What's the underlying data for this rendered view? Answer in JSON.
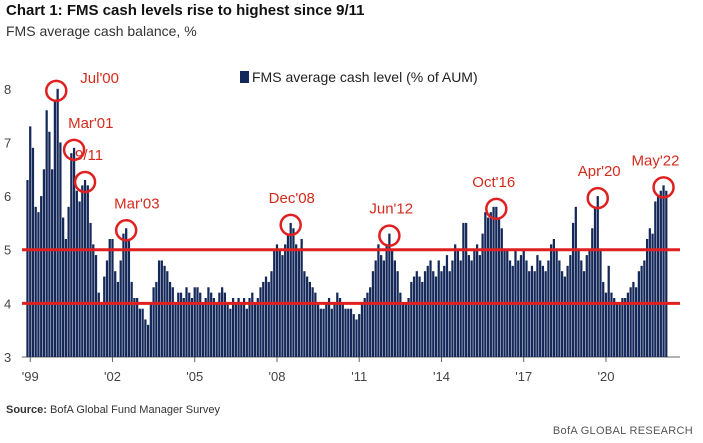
{
  "title": "Chart 1: FMS cash levels rise to highest since 9/11",
  "subtitle": "FMS average cash balance, %",
  "source_label": "Source:",
  "source_text": "BofA Global Fund Manager Survey",
  "brand": "BofA GLOBAL RESEARCH",
  "colors": {
    "bar": "#15285a",
    "highlight": "#e02020",
    "annotation": "#d52b1e"
  },
  "chart_data": {
    "type": "bar",
    "title": "Chart 1: FMS cash levels rise to highest since 9/11",
    "ylabel": "FMS average cash balance, %",
    "xlabel": "",
    "ylim": [
      3,
      8.5
    ],
    "xlim": [
      1998.7,
      2022.7
    ],
    "yticks": [
      3,
      4,
      5,
      6,
      7,
      8
    ],
    "xticks": [
      {
        "x": 1999,
        "label": "'99"
      },
      {
        "x": 2002,
        "label": "'02"
      },
      {
        "x": 2005,
        "label": "'05"
      },
      {
        "x": 2008,
        "label": "'08"
      },
      {
        "x": 2011,
        "label": "'11"
      },
      {
        "x": 2014,
        "label": "'14"
      },
      {
        "x": 2017,
        "label": "'17"
      },
      {
        "x": 2020,
        "label": "'20"
      }
    ],
    "legend": "FMS average cash level (% of AUM)",
    "reference_lines": [
      5.0,
      4.0
    ],
    "series": [
      {
        "name": "FMS average cash level (% of AUM)",
        "points": [
          [
            1998.9,
            6.3
          ],
          [
            1999.0,
            7.3
          ],
          [
            1999.1,
            6.9
          ],
          [
            1999.2,
            5.8
          ],
          [
            1999.3,
            5.7
          ],
          [
            1999.4,
            6.0
          ],
          [
            1999.5,
            6.5
          ],
          [
            1999.6,
            7.6
          ],
          [
            1999.7,
            7.2
          ],
          [
            1999.8,
            6.5
          ],
          [
            1999.9,
            7.8
          ],
          [
            2000.0,
            8.0
          ],
          [
            2000.1,
            7.0
          ],
          [
            2000.2,
            5.6
          ],
          [
            2000.3,
            5.2
          ],
          [
            2000.4,
            5.8
          ],
          [
            2000.5,
            6.8
          ],
          [
            2000.6,
            6.9
          ],
          [
            2000.7,
            6.1
          ],
          [
            2000.8,
            5.9
          ],
          [
            2000.9,
            6.2
          ],
          [
            2001.0,
            6.3
          ],
          [
            2001.1,
            6.2
          ],
          [
            2001.2,
            5.5
          ],
          [
            2001.3,
            5.1
          ],
          [
            2001.4,
            4.9
          ],
          [
            2001.5,
            4.2
          ],
          [
            2001.6,
            4.0
          ],
          [
            2001.7,
            4.5
          ],
          [
            2001.8,
            4.8
          ],
          [
            2001.9,
            5.2
          ],
          [
            2002.0,
            5.2
          ],
          [
            2002.1,
            4.6
          ],
          [
            2002.2,
            4.4
          ],
          [
            2002.3,
            4.8
          ],
          [
            2002.4,
            5.3
          ],
          [
            2002.5,
            5.4
          ],
          [
            2002.6,
            5.2
          ],
          [
            2002.7,
            4.4
          ],
          [
            2002.8,
            4.1
          ],
          [
            2002.9,
            4.1
          ],
          [
            2003.0,
            3.9
          ],
          [
            2003.1,
            3.9
          ],
          [
            2003.2,
            3.7
          ],
          [
            2003.3,
            3.6
          ],
          [
            2003.4,
            4.0
          ],
          [
            2003.5,
            4.3
          ],
          [
            2003.6,
            4.4
          ],
          [
            2003.7,
            4.8
          ],
          [
            2003.8,
            4.8
          ],
          [
            2003.9,
            4.7
          ],
          [
            2004.0,
            4.6
          ],
          [
            2004.1,
            4.4
          ],
          [
            2004.2,
            4.3
          ],
          [
            2004.3,
            4.0
          ],
          [
            2004.4,
            4.2
          ],
          [
            2004.5,
            4.2
          ],
          [
            2004.6,
            4.1
          ],
          [
            2004.7,
            4.3
          ],
          [
            2004.8,
            4.2
          ],
          [
            2004.9,
            4.1
          ],
          [
            2005.0,
            4.3
          ],
          [
            2005.1,
            4.3
          ],
          [
            2005.2,
            4.2
          ],
          [
            2005.3,
            4.0
          ],
          [
            2005.4,
            4.1
          ],
          [
            2005.5,
            4.3
          ],
          [
            2005.6,
            4.2
          ],
          [
            2005.7,
            4.1
          ],
          [
            2005.8,
            4.0
          ],
          [
            2005.9,
            4.2
          ],
          [
            2006.0,
            4.3
          ],
          [
            2006.1,
            4.2
          ],
          [
            2006.2,
            4.0
          ],
          [
            2006.3,
            3.9
          ],
          [
            2006.4,
            4.1
          ],
          [
            2006.5,
            4.0
          ],
          [
            2006.6,
            4.1
          ],
          [
            2006.7,
            4.0
          ],
          [
            2006.8,
            4.1
          ],
          [
            2006.9,
            3.9
          ],
          [
            2007.0,
            4.1
          ],
          [
            2007.1,
            4.2
          ],
          [
            2007.2,
            4.0
          ],
          [
            2007.3,
            4.1
          ],
          [
            2007.4,
            4.3
          ],
          [
            2007.5,
            4.4
          ],
          [
            2007.6,
            4.5
          ],
          [
            2007.7,
            4.4
          ],
          [
            2007.8,
            4.6
          ],
          [
            2007.9,
            5.0
          ],
          [
            2008.0,
            5.1
          ],
          [
            2008.1,
            5.0
          ],
          [
            2008.2,
            4.9
          ],
          [
            2008.3,
            5.1
          ],
          [
            2008.4,
            5.3
          ],
          [
            2008.5,
            5.5
          ],
          [
            2008.6,
            5.4
          ],
          [
            2008.7,
            5.1
          ],
          [
            2008.8,
            5.0
          ],
          [
            2008.9,
            5.2
          ],
          [
            2009.0,
            4.6
          ],
          [
            2009.1,
            4.5
          ],
          [
            2009.2,
            4.4
          ],
          [
            2009.3,
            4.3
          ],
          [
            2009.4,
            4.2
          ],
          [
            2009.5,
            4.0
          ],
          [
            2009.6,
            3.9
          ],
          [
            2009.7,
            3.9
          ],
          [
            2009.8,
            4.0
          ],
          [
            2009.9,
            4.1
          ],
          [
            2010.0,
            3.9
          ],
          [
            2010.1,
            4.0
          ],
          [
            2010.2,
            4.2
          ],
          [
            2010.3,
            4.1
          ],
          [
            2010.4,
            4.0
          ],
          [
            2010.5,
            3.9
          ],
          [
            2010.6,
            3.9
          ],
          [
            2010.7,
            3.9
          ],
          [
            2010.8,
            3.8
          ],
          [
            2010.9,
            3.7
          ],
          [
            2011.0,
            3.8
          ],
          [
            2011.1,
            4.0
          ],
          [
            2011.2,
            4.1
          ],
          [
            2011.3,
            4.2
          ],
          [
            2011.4,
            4.3
          ],
          [
            2011.5,
            4.6
          ],
          [
            2011.6,
            4.8
          ],
          [
            2011.7,
            5.1
          ],
          [
            2011.8,
            4.9
          ],
          [
            2011.9,
            4.8
          ],
          [
            2012.0,
            5.1
          ],
          [
            2012.1,
            5.3
          ],
          [
            2012.2,
            5.0
          ],
          [
            2012.3,
            4.8
          ],
          [
            2012.4,
            4.6
          ],
          [
            2012.5,
            4.2
          ],
          [
            2012.6,
            4.0
          ],
          [
            2012.7,
            4.0
          ],
          [
            2012.8,
            4.1
          ],
          [
            2012.9,
            4.4
          ],
          [
            2013.0,
            4.5
          ],
          [
            2013.1,
            4.6
          ],
          [
            2013.2,
            4.5
          ],
          [
            2013.3,
            4.4
          ],
          [
            2013.4,
            4.6
          ],
          [
            2013.5,
            4.7
          ],
          [
            2013.6,
            4.8
          ],
          [
            2013.7,
            4.6
          ],
          [
            2013.8,
            4.5
          ],
          [
            2013.9,
            4.8
          ],
          [
            2014.0,
            4.6
          ],
          [
            2014.1,
            4.7
          ],
          [
            2014.2,
            4.9
          ],
          [
            2014.3,
            4.6
          ],
          [
            2014.4,
            4.8
          ],
          [
            2014.5,
            5.1
          ],
          [
            2014.6,
            5.0
          ],
          [
            2014.7,
            4.8
          ],
          [
            2014.8,
            5.5
          ],
          [
            2014.9,
            5.5
          ],
          [
            2015.0,
            4.9
          ],
          [
            2015.1,
            4.8
          ],
          [
            2015.2,
            5.0
          ],
          [
            2015.3,
            5.1
          ],
          [
            2015.4,
            4.9
          ],
          [
            2015.5,
            5.3
          ],
          [
            2015.6,
            5.7
          ],
          [
            2015.7,
            5.6
          ],
          [
            2015.8,
            5.7
          ],
          [
            2015.9,
            5.8
          ],
          [
            2016.0,
            5.8
          ],
          [
            2016.1,
            5.6
          ],
          [
            2016.2,
            5.4
          ],
          [
            2016.3,
            5.0
          ],
          [
            2016.4,
            5.0
          ],
          [
            2016.5,
            4.8
          ],
          [
            2016.6,
            4.7
          ],
          [
            2016.7,
            5.0
          ],
          [
            2016.8,
            4.8
          ],
          [
            2016.9,
            4.9
          ],
          [
            2017.0,
            5.0
          ],
          [
            2017.1,
            4.8
          ],
          [
            2017.2,
            4.6
          ],
          [
            2017.3,
            4.7
          ],
          [
            2017.4,
            4.6
          ],
          [
            2017.5,
            4.9
          ],
          [
            2017.6,
            4.8
          ],
          [
            2017.7,
            4.7
          ],
          [
            2017.8,
            4.6
          ],
          [
            2017.9,
            4.8
          ],
          [
            2018.0,
            5.1
          ],
          [
            2018.1,
            5.2
          ],
          [
            2018.2,
            5.0
          ],
          [
            2018.3,
            4.8
          ],
          [
            2018.4,
            4.6
          ],
          [
            2018.5,
            4.5
          ],
          [
            2018.6,
            4.7
          ],
          [
            2018.7,
            4.9
          ],
          [
            2018.8,
            5.5
          ],
          [
            2018.9,
            5.8
          ],
          [
            2019.0,
            5.0
          ],
          [
            2019.1,
            4.8
          ],
          [
            2019.2,
            4.6
          ],
          [
            2019.3,
            4.9
          ],
          [
            2019.4,
            5.0
          ],
          [
            2019.5,
            5.4
          ],
          [
            2019.6,
            5.8
          ],
          [
            2019.7,
            6.0
          ],
          [
            2019.8,
            5.0
          ],
          [
            2019.9,
            4.4
          ],
          [
            2020.0,
            4.2
          ],
          [
            2020.1,
            4.7
          ],
          [
            2020.2,
            4.2
          ],
          [
            2020.3,
            4.1
          ],
          [
            2020.4,
            4.0
          ],
          [
            2020.5,
            4.0
          ],
          [
            2020.6,
            4.1
          ],
          [
            2020.7,
            4.1
          ],
          [
            2020.8,
            4.2
          ],
          [
            2020.9,
            4.3
          ],
          [
            2021.0,
            4.4
          ],
          [
            2021.1,
            4.3
          ],
          [
            2021.2,
            4.6
          ],
          [
            2021.3,
            4.7
          ],
          [
            2021.4,
            4.8
          ],
          [
            2021.5,
            5.2
          ],
          [
            2021.6,
            5.4
          ],
          [
            2021.7,
            5.3
          ],
          [
            2021.8,
            5.9
          ],
          [
            2021.9,
            6.0
          ],
          [
            2022.0,
            6.1
          ],
          [
            2022.1,
            6.2
          ],
          [
            2022.2,
            6.1
          ]
        ]
      }
    ],
    "annotations": [
      {
        "label": "Jul'00",
        "x": 1999.95,
        "y": 8.0
      },
      {
        "label": "Mar'01",
        "x": 2000.6,
        "y": 6.9
      },
      {
        "label": "9/11",
        "x": 2001.0,
        "y": 6.3
      },
      {
        "label": "Mar'03",
        "x": 2002.5,
        "y": 5.4
      },
      {
        "label": "Dec'08",
        "x": 2008.5,
        "y": 5.5
      },
      {
        "label": "Jun'12",
        "x": 2012.1,
        "y": 5.3
      },
      {
        "label": "Oct'16",
        "x": 2016.0,
        "y": 5.8
      },
      {
        "label": "Apr'20",
        "x": 2019.7,
        "y": 6.0
      },
      {
        "label": "May'22",
        "x": 2022.1,
        "y": 6.2
      }
    ]
  }
}
